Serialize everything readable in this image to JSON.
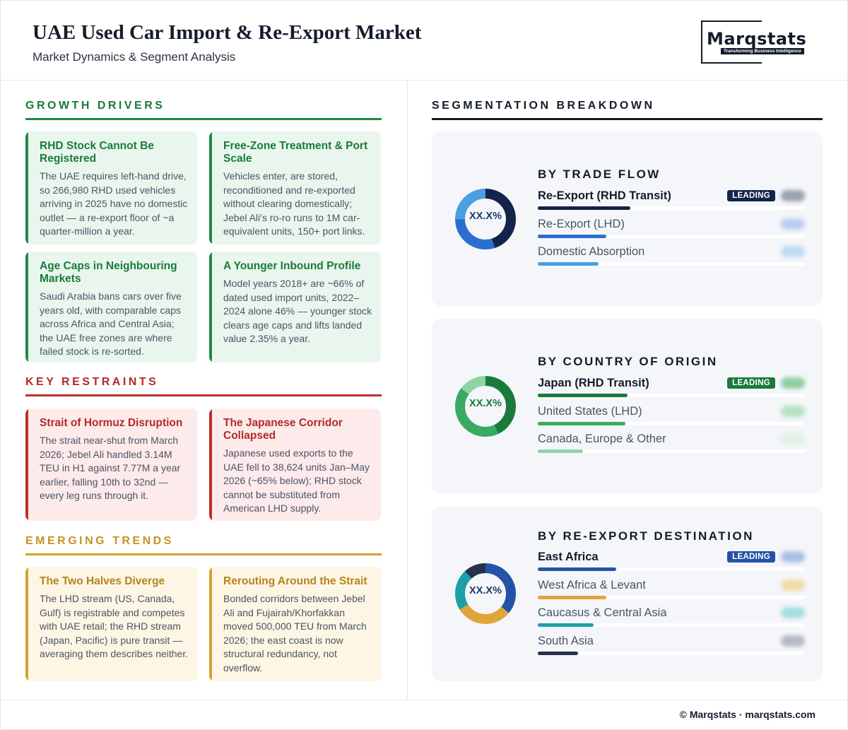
{
  "header": {
    "title": "UAE Used Car Import & Re-Export Market",
    "subtitle": "Market Dynamics & Segment Analysis",
    "logo_word": "Marqstats",
    "logo_tagline": "Transforming Business Intelligence"
  },
  "colors": {
    "green": "#1f8a45",
    "red": "#b8302f",
    "amber": "#d4a035",
    "navy": "#1a2a4f"
  },
  "growth_drivers": {
    "heading": "GROWTH DRIVERS",
    "cards": [
      {
        "title": "RHD Stock Cannot Be Registered",
        "body": "The UAE requires left-hand drive, so 266,980 RHD used vehicles arriving in 2025 have no domestic outlet — a re-export floor of ~a quarter-million a year."
      },
      {
        "title": "Free-Zone Treatment & Port Scale",
        "body": "Vehicles enter, are stored, reconditioned and re-exported without clearing domestically; Jebel Ali's ro-ro runs to 1M car-equivalent units, 150+ port links."
      },
      {
        "title": "Age Caps in Neighbouring Markets",
        "body": "Saudi Arabia bans cars over five years old, with comparable caps across Africa and Central Asia; the UAE free zones are where failed stock is re-sorted."
      },
      {
        "title": "A Younger Inbound Profile",
        "body": "Model years 2018+ are ~66% of dated used import units, 2022–2024 alone 46% — younger stock clears age caps and lifts landed value 2.35% a year."
      }
    ]
  },
  "key_restraints": {
    "heading": "KEY RESTRAINTS",
    "cards": [
      {
        "title": "Strait of Hormuz Disruption",
        "body": "The strait near-shut from March 2026; Jebel Ali handled 3.14M TEU in H1 against 7.77M a year earlier, falling 10th to 32nd — every leg runs through it."
      },
      {
        "title": "The Japanese Corridor Collapsed",
        "body": "Japanese used exports to the UAE fell to 38,624 units Jan–May 2026 (~65% below); RHD stock cannot be substituted from American LHD supply."
      }
    ]
  },
  "emerging_trends": {
    "heading": "EMERGING TRENDS",
    "cards": [
      {
        "title": "The Two Halves Diverge",
        "body": "The LHD stream (US, Canada, Gulf) is registrable and competes with UAE retail; the RHD stream (Japan, Pacific) is pure transit — averaging them describes neither."
      },
      {
        "title": "Rerouting Around the Strait",
        "body": "Bonded corridors between Jebel Ali and Fujairah/Khorfakkan moved 500,000 TEU from March 2026; the east coast is now structural redundancy, not overflow."
      }
    ]
  },
  "segmentation": {
    "heading": "SEGMENTATION BREAKDOWN",
    "leading_label": "LEADING",
    "panels": [
      {
        "heading": "BY TRADE FLOW",
        "center_label": "XX.X%",
        "rows": [
          {
            "name": "Re-Export (RHD Transit)",
            "share": 0.45,
            "color": "#14234a",
            "leading": true
          },
          {
            "name": "Re-Export (LHD)",
            "share": 0.3,
            "color": "#2a6fd0",
            "leading": false
          },
          {
            "name": "Domestic Absorption",
            "share": 0.25,
            "color": "#4a9fe0",
            "leading": false
          }
        ]
      },
      {
        "heading": "BY COUNTRY OF ORIGIN",
        "center_label": "XX.X%",
        "rows": [
          {
            "name": "Japan (RHD Transit)",
            "share": 0.43,
            "color": "#1a7a3c",
            "leading": true
          },
          {
            "name": "United States (LHD)",
            "share": 0.42,
            "color": "#3aaa62",
            "leading": false
          },
          {
            "name": "Canada, Europe & Other",
            "share": 0.15,
            "color": "#8fd4a6",
            "leading": false
          }
        ]
      },
      {
        "heading": "BY RE-EXPORT DESTINATION",
        "center_label": "XX.X%",
        "rows": [
          {
            "name": "East Africa",
            "share": 0.36,
            "color": "#2452a8",
            "leading": true
          },
          {
            "name": "West Africa & Levant",
            "share": 0.3,
            "color": "#e0a53a",
            "leading": false
          },
          {
            "name": "Caucasus & Central Asia",
            "share": 0.22,
            "color": "#1ba0a8",
            "leading": false
          },
          {
            "name": "South Asia",
            "share": 0.12,
            "color": "#26324a",
            "leading": false
          }
        ]
      }
    ]
  },
  "footer": {
    "text": "© Marqstats · marqstats.com"
  }
}
